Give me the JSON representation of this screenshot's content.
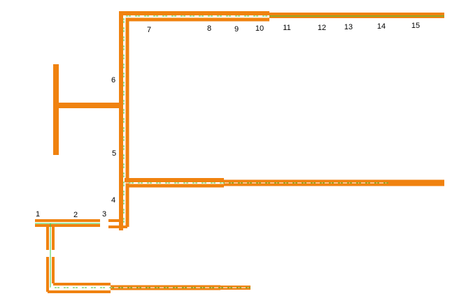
{
  "nodes": [
    {
      "label": "1"
    },
    {
      "label": "2"
    },
    {
      "label": "3"
    },
    {
      "label": "4"
    },
    {
      "label": "5"
    },
    {
      "label": "6"
    },
    {
      "label": "7"
    },
    {
      "label": "8"
    },
    {
      "label": "9"
    },
    {
      "label": "10"
    },
    {
      "label": "11"
    },
    {
      "label": "12"
    },
    {
      "label": "13"
    },
    {
      "label": "14"
    },
    {
      "label": "15"
    }
  ]
}
